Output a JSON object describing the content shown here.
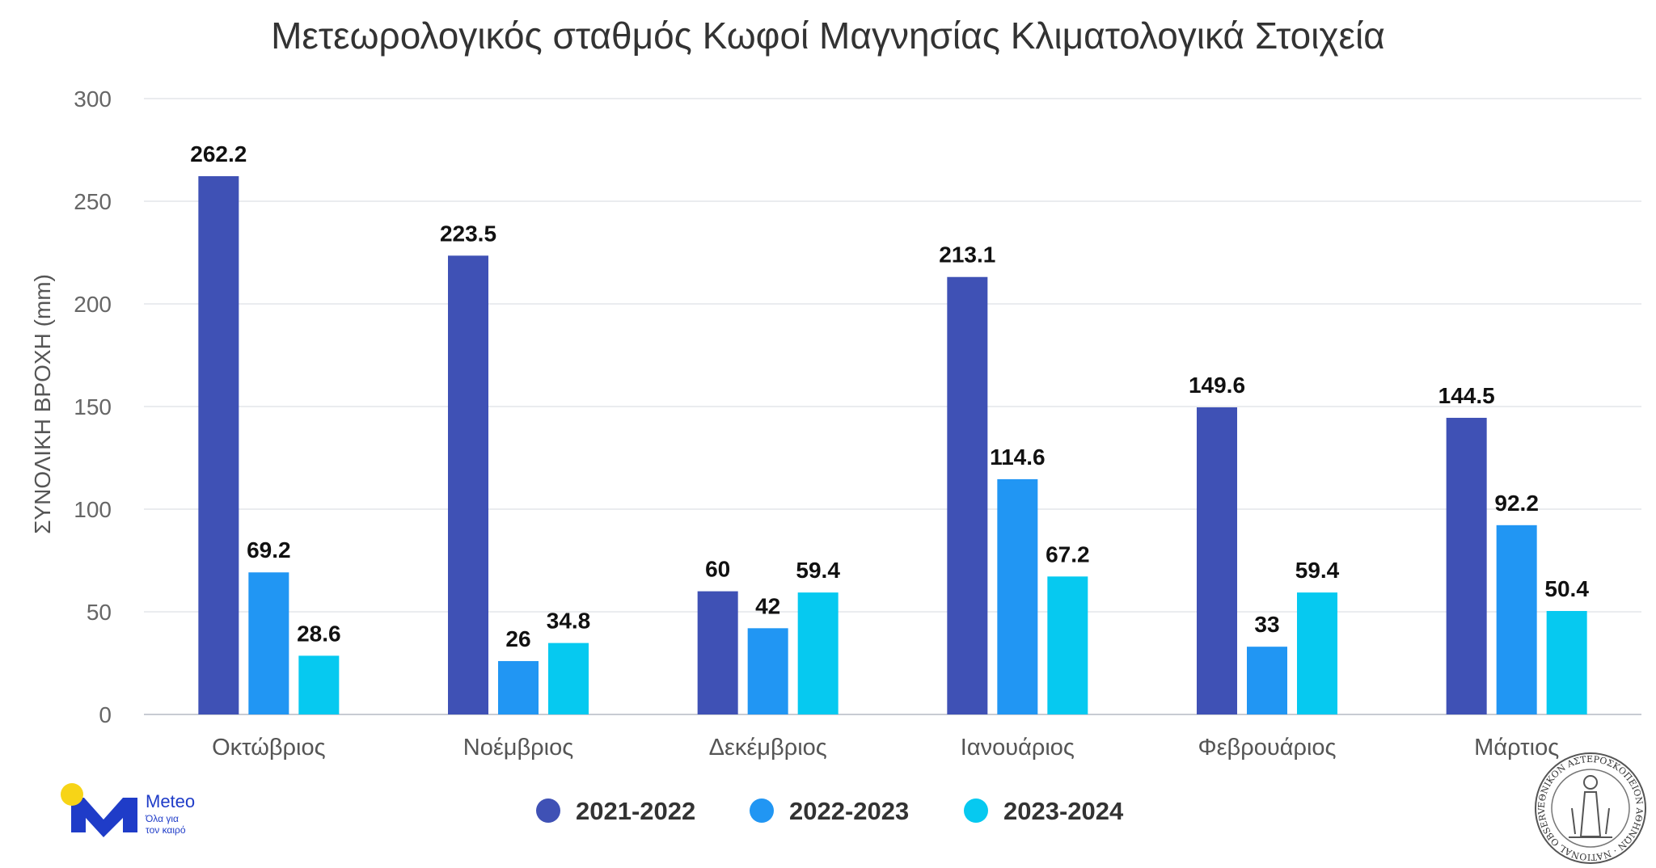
{
  "chart_data": {
    "type": "bar",
    "title": "Μετεωρολογικός σταθμός Κωφοί Μαγνησίας Κλιματολογικά Στοιχεία",
    "xlabel": "",
    "ylabel": "ΣΥΝΟΛΙΚΗ ΒΡΟΧΗ (mm)",
    "ylim": [
      0,
      300
    ],
    "yticks": [
      0,
      50,
      100,
      150,
      200,
      250,
      300
    ],
    "grid": true,
    "legend": "bottom",
    "categories": [
      "Οκτώβριος",
      "Νοέμβριος",
      "Δεκέμβριος",
      "Ιανουάριος",
      "Φεβρουάριος",
      "Μάρτιος"
    ],
    "series": [
      {
        "name": "2021-2022",
        "color": "#3f51b5",
        "values": [
          262.2,
          223.5,
          60,
          213.1,
          149.6,
          144.5
        ]
      },
      {
        "name": "2022-2023",
        "color": "#2196f3",
        "values": [
          69.2,
          26,
          42,
          114.6,
          33,
          92.2
        ]
      },
      {
        "name": "2023-2024",
        "color": "#06c9f0",
        "values": [
          28.6,
          34.8,
          59.4,
          67.2,
          59.4,
          50.4
        ]
      }
    ]
  },
  "logo": {
    "name": "Meteo",
    "tagline_line1": "Όλα για",
    "tagline_line2": "τον καιρό",
    "icon": "meteo-m-logo",
    "color": "#1f3cc8",
    "sun_color": "#f7d417"
  },
  "seal": {
    "icon": "national-observatory-seal",
    "text": "ΕΘΝΙΚΟΝ ΑΣΤΕΡΟΣΚΟΠΕΙΟΝ ΑΘΗΝΩΝ · NATIONAL OBSERVATORY ATHENS"
  }
}
